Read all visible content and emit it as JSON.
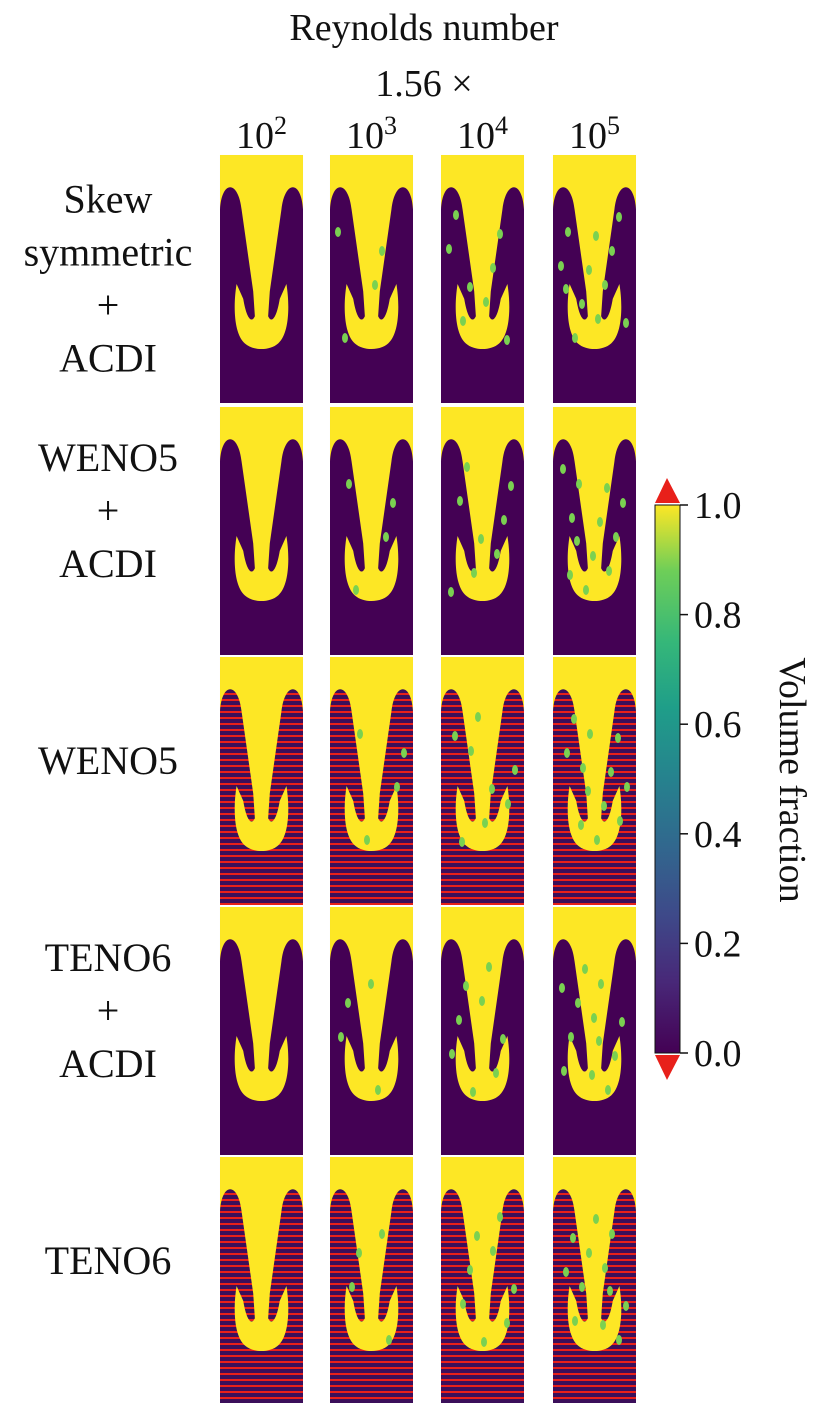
{
  "header": {
    "title": "Reynolds number",
    "subtitle": "1.56 ×"
  },
  "columns": [
    {
      "base": "10",
      "exponent": "2"
    },
    {
      "base": "10",
      "exponent": "3"
    },
    {
      "base": "10",
      "exponent": "4"
    },
    {
      "base": "10",
      "exponent": "5"
    }
  ],
  "rows": [
    {
      "lines": [
        "Skew",
        "symmetric",
        "+",
        "ACDI"
      ]
    },
    {
      "lines": [
        "WENO5",
        "+",
        "ACDI"
      ]
    },
    {
      "lines": [
        "WENO5"
      ]
    },
    {
      "lines": [
        "TENO6",
        "+",
        "ACDI"
      ]
    },
    {
      "lines": [
        "TENO6"
      ]
    }
  ],
  "colorbar": {
    "label": "Volume fraction",
    "lim": [
      0,
      1
    ],
    "ticks": [
      {
        "value": 0,
        "label": "0.0"
      },
      {
        "value": 0.2,
        "label": "0.2"
      },
      {
        "value": 0.4,
        "label": "0.4"
      },
      {
        "value": 0.6,
        "label": "0.6"
      },
      {
        "value": 0.8,
        "label": "0.8"
      },
      {
        "value": 1,
        "label": "1.0"
      }
    ]
  }
}
